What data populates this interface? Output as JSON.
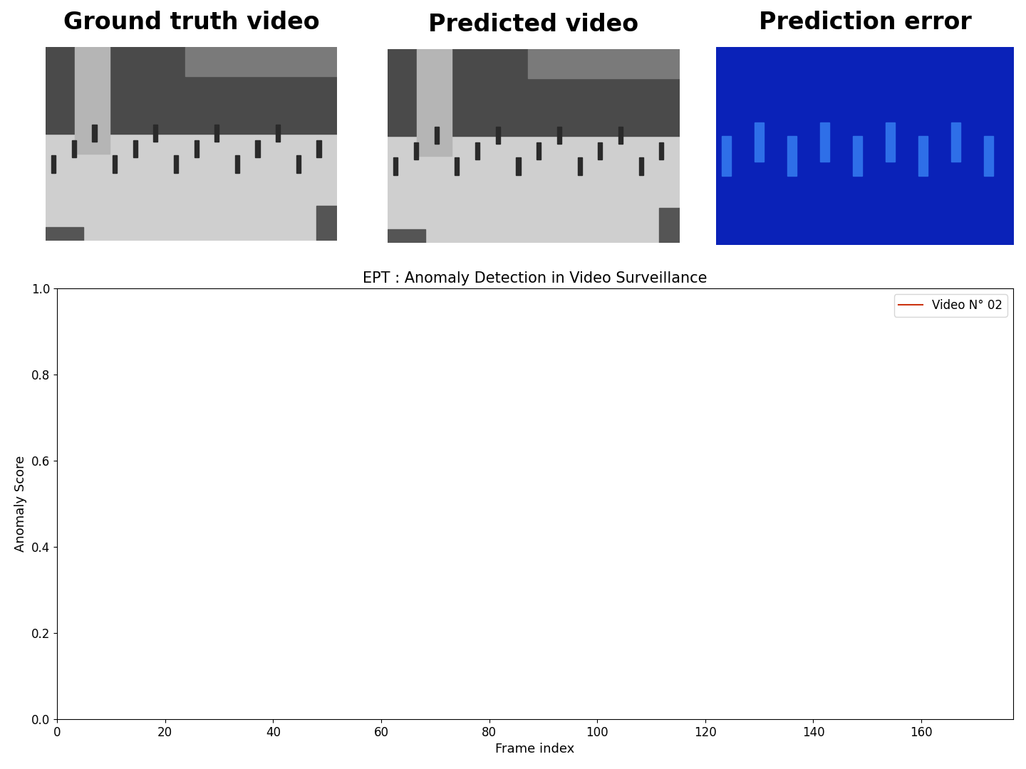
{
  "panels": [
    "Ground truth video",
    "Predicted video",
    "Prediction error"
  ],
  "chart_data": {
    "type": "line",
    "title": "EPT : Anomaly Detection in Video Surveillance",
    "xlabel": "Frame index",
    "ylabel": "Anomaly Score",
    "x": [],
    "series": [
      {
        "name": "Video N° 02",
        "color": "#cc3311",
        "values": []
      }
    ],
    "xlim": [
      0,
      177
    ],
    "ylim": [
      0,
      1
    ],
    "xticks": [
      0,
      20,
      40,
      60,
      80,
      100,
      120,
      140,
      160
    ],
    "yticks": [
      {
        "value": 0,
        "label": "0.0"
      },
      {
        "value": 0.2,
        "label": "0.2"
      },
      {
        "value": 0.4,
        "label": "0.4"
      },
      {
        "value": 0.6,
        "label": "0.6"
      },
      {
        "value": 0.8,
        "label": "0.8"
      },
      {
        "value": 1,
        "label": "1.0"
      }
    ],
    "legend": "upper right",
    "grid": false
  }
}
